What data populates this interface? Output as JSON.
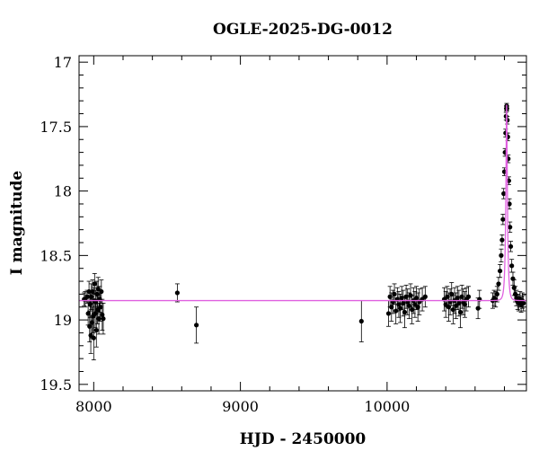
{
  "chart_data": {
    "type": "scatter",
    "title": "OGLE-2025-DG-0012",
    "xlabel": "HJD - 2450000",
    "ylabel": "I magnitude",
    "xlim": [
      7900,
      10950
    ],
    "ylim": [
      19.55,
      16.95
    ],
    "y_inverted": true,
    "grid": false,
    "x_ticks": [
      8000,
      9000,
      10000
    ],
    "x_tick_labels": [
      "8000",
      "9000",
      "10000"
    ],
    "y_ticks": [
      17,
      17.5,
      18,
      18.5,
      19,
      19.5
    ],
    "y_tick_labels": [
      "17",
      "17.5",
      "18",
      "18.5",
      "19",
      "19.5"
    ],
    "model": {
      "baseline_mag": 18.85,
      "peak_time": 10815,
      "peak_mag": 17.33,
      "timescale_days": 12,
      "color": "#e060e0"
    },
    "colors": {
      "points": "#000000",
      "model": "#e060e0"
    },
    "series": [
      {
        "points": [
          [
            7935,
            18.84,
            0.05
          ],
          [
            7942,
            18.84,
            0.06
          ],
          [
            7955,
            18.82,
            0.05
          ],
          [
            7962,
            18.95,
            0.09
          ],
          [
            7968,
            18.78,
            0.08
          ],
          [
            7972,
            19.05,
            0.12
          ],
          [
            7976,
            18.88,
            0.1
          ],
          [
            7980,
            19.12,
            0.14
          ],
          [
            7984,
            18.82,
            0.1
          ],
          [
            7988,
            19.02,
            0.12
          ],
          [
            7992,
            18.78,
            0.09
          ],
          [
            7996,
            18.97,
            0.13
          ],
          [
            8000,
            19.14,
            0.17
          ],
          [
            8003,
            18.85,
            0.1
          ],
          [
            8006,
            18.72,
            0.08
          ],
          [
            8010,
            18.95,
            0.11
          ],
          [
            8014,
            18.86,
            0.09
          ],
          [
            8018,
            19.08,
            0.13
          ],
          [
            8022,
            18.8,
            0.1
          ],
          [
            8026,
            18.92,
            0.11
          ],
          [
            8030,
            18.76,
            0.09
          ],
          [
            8035,
            18.99,
            0.12
          ],
          [
            8040,
            18.84,
            0.1
          ],
          [
            8045,
            18.9,
            0.11
          ],
          [
            8052,
            18.78,
            0.09
          ],
          [
            8058,
            18.96,
            0.12
          ],
          [
            8065,
            18.99,
            0.12
          ],
          [
            8570,
            18.79,
            0.07
          ],
          [
            8700,
            19.04,
            0.14
          ],
          [
            9825,
            19.01,
            0.16
          ],
          [
            10010,
            18.95,
            0.1
          ],
          [
            10020,
            18.82,
            0.08
          ],
          [
            10030,
            18.9,
            0.11
          ],
          [
            10040,
            18.86,
            0.09
          ],
          [
            10050,
            18.8,
            0.08
          ],
          [
            10060,
            18.93,
            0.1
          ],
          [
            10070,
            18.84,
            0.09
          ],
          [
            10080,
            18.88,
            0.1
          ],
          [
            10090,
            18.91,
            0.11
          ],
          [
            10100,
            18.83,
            0.09
          ],
          [
            10110,
            18.87,
            0.1
          ],
          [
            10120,
            18.94,
            0.12
          ],
          [
            10130,
            18.82,
            0.09
          ],
          [
            10140,
            18.86,
            0.1
          ],
          [
            10150,
            18.89,
            0.1
          ],
          [
            10160,
            18.81,
            0.09
          ],
          [
            10170,
            18.92,
            0.11
          ],
          [
            10180,
            18.85,
            0.1
          ],
          [
            10190,
            18.88,
            0.1
          ],
          [
            10200,
            18.83,
            0.09
          ],
          [
            10210,
            18.9,
            0.11
          ],
          [
            10220,
            18.86,
            0.1
          ],
          [
            10240,
            18.84,
            0.09
          ],
          [
            10260,
            18.82,
            0.08
          ],
          [
            10390,
            18.84,
            0.09
          ],
          [
            10400,
            18.88,
            0.1
          ],
          [
            10410,
            18.82,
            0.08
          ],
          [
            10420,
            18.9,
            0.11
          ],
          [
            10430,
            18.86,
            0.1
          ],
          [
            10440,
            18.8,
            0.09
          ],
          [
            10450,
            18.92,
            0.11
          ],
          [
            10460,
            18.85,
            0.1
          ],
          [
            10470,
            18.89,
            0.1
          ],
          [
            10480,
            18.83,
            0.09
          ],
          [
            10490,
            18.87,
            0.1
          ],
          [
            10500,
            18.94,
            0.12
          ],
          [
            10510,
            18.82,
            0.09
          ],
          [
            10520,
            18.86,
            0.1
          ],
          [
            10530,
            18.88,
            0.1
          ],
          [
            10540,
            18.84,
            0.09
          ],
          [
            10555,
            18.82,
            0.08
          ],
          [
            10620,
            18.91,
            0.08
          ],
          [
            10630,
            18.84,
            0.07
          ],
          [
            10720,
            18.85,
            0.06
          ],
          [
            10730,
            18.83,
            0.06
          ],
          [
            10740,
            18.84,
            0.06
          ],
          [
            10750,
            18.8,
            0.06
          ],
          [
            10760,
            18.72,
            0.05
          ],
          [
            10770,
            18.62,
            0.05
          ],
          [
            10778,
            18.5,
            0.05
          ],
          [
            10784,
            18.38,
            0.04
          ],
          [
            10790,
            18.22,
            0.04
          ],
          [
            10795,
            18.02,
            0.04
          ],
          [
            10800,
            17.85,
            0.03
          ],
          [
            10804,
            17.7,
            0.03
          ],
          [
            10808,
            17.55,
            0.03
          ],
          [
            10811,
            17.42,
            0.03
          ],
          [
            10813,
            17.36,
            0.02
          ],
          [
            10815,
            17.34,
            0.02
          ],
          [
            10817,
            17.36,
            0.02
          ],
          [
            10820,
            17.45,
            0.03
          ],
          [
            10823,
            17.58,
            0.03
          ],
          [
            10826,
            17.75,
            0.03
          ],
          [
            10830,
            17.92,
            0.03
          ],
          [
            10834,
            18.1,
            0.04
          ],
          [
            10838,
            18.28,
            0.04
          ],
          [
            10843,
            18.43,
            0.04
          ],
          [
            10850,
            18.58,
            0.05
          ],
          [
            10858,
            18.68,
            0.05
          ],
          [
            10866,
            18.75,
            0.06
          ],
          [
            10874,
            18.8,
            0.06
          ],
          [
            10882,
            18.83,
            0.06
          ],
          [
            10890,
            18.86,
            0.06
          ],
          [
            10898,
            18.87,
            0.06
          ],
          [
            10906,
            18.84,
            0.06
          ],
          [
            10914,
            18.88,
            0.06
          ],
          [
            10922,
            18.85,
            0.06
          ],
          [
            10930,
            18.87,
            0.06
          ]
        ]
      }
    ]
  }
}
